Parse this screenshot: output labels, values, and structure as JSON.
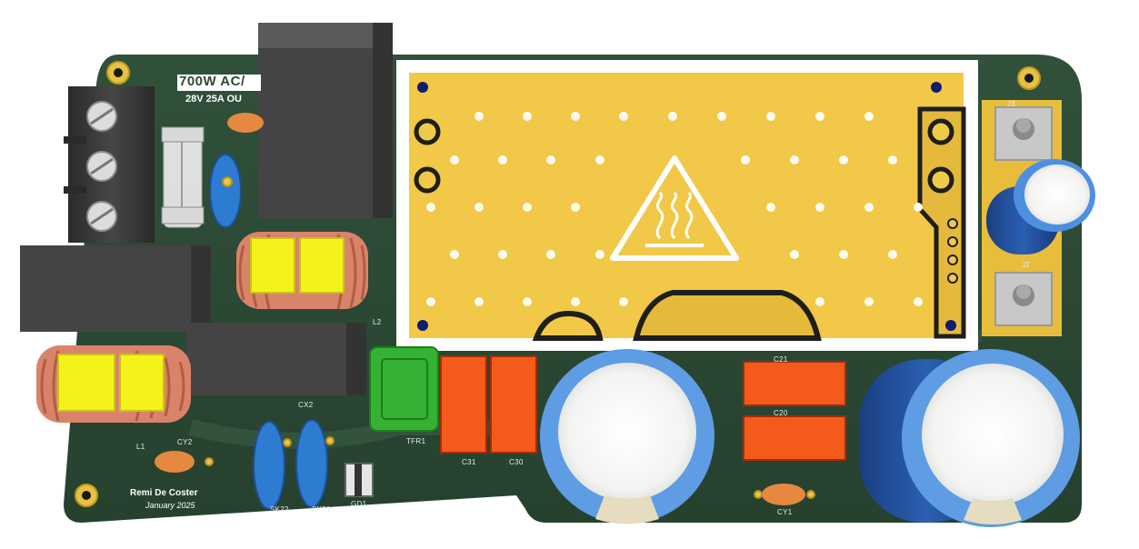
{
  "board": {
    "title": "700W AC/",
    "subtitle": "28V 25A OU",
    "author": "Remi De Coster",
    "date": "January 2025"
  },
  "designators": {
    "l1": "L1",
    "cy2": "CY2",
    "cx2": "CX2",
    "l2": "L2",
    "sk22": "SK22",
    "sk21": "SK21",
    "gd1": "GD1",
    "tfr1": "TFR1",
    "c31": "C31",
    "c30": "C30",
    "c20": "C20",
    "c21": "C21",
    "cy1": "CY1",
    "j3": "J3",
    "j2": "J2"
  },
  "colors": {
    "pcb": "#2c4a34",
    "heatsink": "#f2c94c",
    "silkscreen": "#ffffff",
    "electrolytic_blue": "#1f4f9a",
    "film_cap_orange": "#ff5a1a",
    "inductor_yellow": "#f4f21a",
    "inductor_copper": "#e08a6a",
    "ferrite_green": "#35b233"
  },
  "icons": {
    "heat_warning": "hot-surface-warning-icon"
  }
}
